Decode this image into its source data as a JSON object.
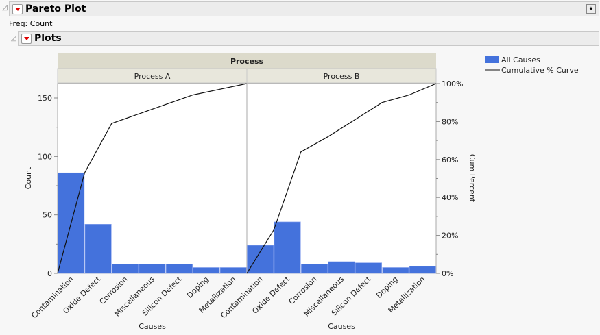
{
  "outline": {
    "title": "Pareto Plot",
    "freq": "Freq: Count",
    "plots_title": "Plots"
  },
  "colors": {
    "bar": "#4472dc",
    "curve": "#111111",
    "header": "#dcdacb",
    "subheader": "#e8e7dc"
  },
  "chart_data": {
    "type": "bar",
    "group_title": "Process",
    "categories": [
      "Contamination",
      "Oxide Defect",
      "Corrosion",
      "Miscellaneous",
      "Silicon Defect",
      "Doping",
      "Metallization"
    ],
    "panels": [
      {
        "title": "Process A",
        "values": [
          86,
          42,
          8,
          8,
          8,
          5,
          5
        ],
        "cum_percent": [
          53,
          79,
          84,
          89,
          94,
          97,
          100
        ],
        "xlabel": "Causes"
      },
      {
        "title": "Process B",
        "values": [
          24,
          44,
          8,
          10,
          9,
          5,
          6
        ],
        "cum_percent": [
          23,
          64,
          72,
          81,
          90,
          94,
          100
        ],
        "xlabel": "Causes"
      }
    ],
    "ylabel": "Count",
    "y2label": "Cum Percent",
    "yticks": [
      0,
      50,
      100,
      150
    ],
    "y2ticks": [
      "0%",
      "20%",
      "40%",
      "60%",
      "80%",
      "100%"
    ],
    "legend": {
      "position": "right",
      "items": [
        "All Causes",
        "Cumulative % Curve"
      ]
    }
  }
}
